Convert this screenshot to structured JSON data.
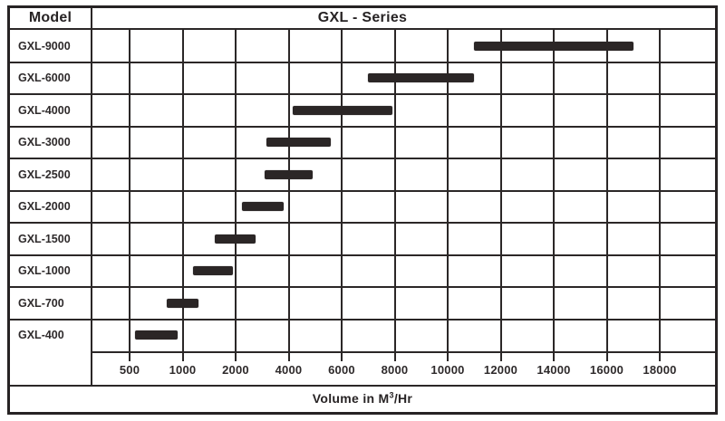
{
  "header": {
    "model_label": "Model",
    "series_title": "GXL - Series"
  },
  "axis": {
    "title_prefix": "Volume in M",
    "title_sup": "3",
    "title_suffix": "/Hr"
  },
  "chart_data": {
    "type": "bar",
    "subtype": "horizontal-range-gantt",
    "title": "GXL - Series",
    "row_header": "Model",
    "xlabel": "Volume in M³/Hr",
    "x_ticks": [
      500,
      1000,
      2000,
      4000,
      6000,
      8000,
      10000,
      12000,
      14000,
      16000,
      18000
    ],
    "x_scale": "non-linear: equal pixel spacing between consecutive tick values",
    "grid": true,
    "legend": "none",
    "bar_color": "#2b2626",
    "rows": [
      {
        "model": "GXL-9000",
        "range": [
          11000,
          17000
        ]
      },
      {
        "model": "GXL-6000",
        "range": [
          7000,
          11000
        ]
      },
      {
        "model": "GXL-4000",
        "range": [
          4150,
          7900
        ]
      },
      {
        "model": "GXL-3000",
        "range": [
          3150,
          5600
        ]
      },
      {
        "model": "GXL-2500",
        "range": [
          3100,
          4900
        ]
      },
      {
        "model": "GXL-2000",
        "range": [
          2250,
          3800
        ]
      },
      {
        "model": "GXL-1500",
        "range": [
          1600,
          2750
        ]
      },
      {
        "model": "GXL-1000",
        "range": [
          1200,
          1950
        ]
      },
      {
        "model": "GXL-700",
        "range": [
          850,
          1300
        ]
      },
      {
        "model": "GXL-400",
        "range": [
          550,
          950
        ]
      }
    ]
  },
  "colors": {
    "ink": "#272324",
    "line": "#2b2727",
    "bar": "#2b2626",
    "background": "#ffffff"
  }
}
